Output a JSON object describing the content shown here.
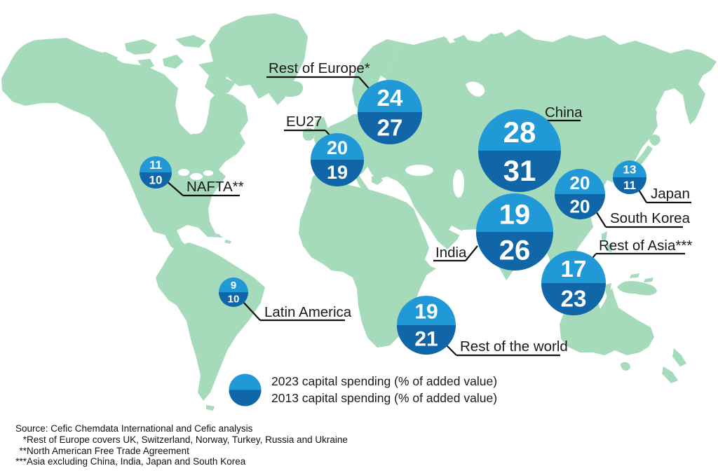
{
  "chart_data": {
    "type": "map_bubbles",
    "title": "",
    "categories": [
      "Rest of Europe*",
      "EU27",
      "NAFTA**",
      "China",
      "Japan",
      "South Korea",
      "India",
      "Rest of Asia***",
      "Latin America",
      "Rest of the world"
    ],
    "series": [
      {
        "name": "2023 capital spending (% of added value)",
        "values": [
          24,
          20,
          11,
          28,
          13,
          20,
          19,
          17,
          9,
          19
        ]
      },
      {
        "name": "2013 capital spending (% of added value)",
        "values": [
          27,
          19,
          10,
          31,
          11,
          20,
          26,
          23,
          10,
          21
        ]
      }
    ],
    "legend_position": "bottom-left",
    "background": "world map"
  },
  "regions": [
    {
      "id": "rest-of-europe",
      "label": "Rest of Europe*",
      "v2023": 24,
      "v2013": 27
    },
    {
      "id": "eu27",
      "label": "EU27",
      "v2023": 20,
      "v2013": 19
    },
    {
      "id": "nafta",
      "label": "NAFTA**",
      "v2023": 11,
      "v2013": 10
    },
    {
      "id": "china",
      "label": "China",
      "v2023": 28,
      "v2013": 31
    },
    {
      "id": "japan",
      "label": "Japan",
      "v2023": 13,
      "v2013": 11
    },
    {
      "id": "south-korea",
      "label": "South Korea",
      "v2023": 20,
      "v2013": 20
    },
    {
      "id": "india",
      "label": "India",
      "v2023": 19,
      "v2013": 26
    },
    {
      "id": "rest-of-asia",
      "label": "Rest of Asia***",
      "v2023": 17,
      "v2013": 23
    },
    {
      "id": "latin-america",
      "label": "Latin America",
      "v2023": 9,
      "v2013": 10
    },
    {
      "id": "rest-of-world",
      "label": "Rest of the world",
      "v2023": 19,
      "v2013": 21
    }
  ],
  "legend": {
    "line_2023": "2023 capital spending (% of added value)",
    "line_2013": "2013 capital spending (% of added value)"
  },
  "footnotes": [
    {
      "prefix": "",
      "text": "Source: Cefic Chemdata International and Cefic analysis"
    },
    {
      "prefix": "*",
      "text": "Rest of Europe covers UK, Switzerland, Norway, Turkey, Russia and Ukraine"
    },
    {
      "prefix": "**",
      "text": "North American Free Trade Agreement"
    },
    {
      "prefix": "***",
      "text": "Asia excluding China, India, Japan and South Korea"
    }
  ],
  "colors": {
    "land": "#A5DABB",
    "ocean": "#FFFFFF",
    "value_2023": "#2199D6",
    "value_2013": "#1066A6",
    "label_text": "#1A1A1A",
    "leader_line": "#111111",
    "bubble_number": "#FFFFFF"
  }
}
